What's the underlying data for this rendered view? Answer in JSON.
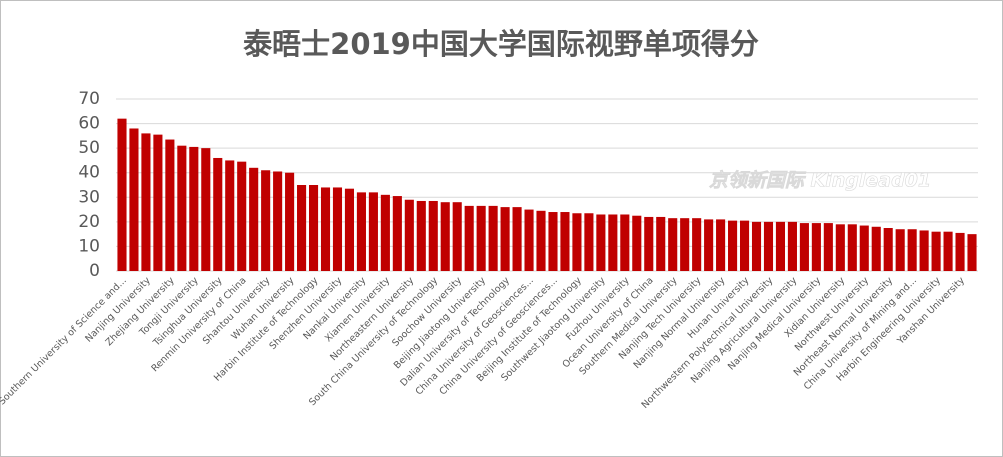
{
  "chart_data": {
    "type": "bar",
    "title": "泰晤士2019中国大学国际视野单项得分",
    "annotation": "京领新国际 Kinglead01",
    "categories": [
      "Southern University of Science and...",
      null,
      "Nanjing University",
      null,
      "Zhejiang University",
      null,
      "Tongji University",
      null,
      "Tsinghua University",
      null,
      "Renmin University of China",
      null,
      "Shantou University",
      null,
      "Wuhan University",
      null,
      "Harbin Institute of Technology",
      null,
      "Shenzhen University",
      null,
      "Nankai University",
      null,
      "Xiamen University",
      null,
      "Northeastern University",
      null,
      "South China University of Technology",
      null,
      "Soochow University",
      null,
      "Beijing Jiaotong University",
      null,
      "Dalian University of Technology",
      null,
      "China University of Geosciences...",
      null,
      "China University of Geosciences...",
      null,
      "Beijing Institute of Technology",
      null,
      "Southwest Jiaotong University",
      null,
      "Fuzhou University",
      null,
      "Ocean University of China",
      null,
      "Southern Medical University",
      null,
      "Nanjing Tech University",
      null,
      "Nanjing Normal University",
      null,
      "Hunan University",
      null,
      "Northwestern Polytechnical University",
      null,
      "Nanjing Agricultural University",
      null,
      "Nanjing Medical University",
      null,
      "Xidian University",
      null,
      "Northwest University",
      null,
      "Northeast Normal University",
      null,
      "China University of Mining and...",
      null,
      "Harbin Engineering University",
      null,
      "Yanshan University",
      null
    ],
    "values": [
      62,
      58,
      56,
      55.5,
      53.5,
      51,
      50.5,
      50,
      46,
      45,
      44.5,
      42,
      41,
      40.5,
      40,
      35,
      35,
      34,
      34,
      33.5,
      32,
      32,
      31,
      30.5,
      29,
      28.5,
      28.5,
      28,
      28,
      26.5,
      26.5,
      26.5,
      26,
      26,
      25,
      24.5,
      24,
      24,
      23.5,
      23.5,
      23,
      23,
      23,
      22.5,
      22,
      22,
      21.5,
      21.5,
      21.5,
      21,
      21,
      20.5,
      20.5,
      20,
      20,
      20,
      20,
      19.5,
      19.5,
      19.5,
      19,
      19,
      18.5,
      18,
      17.5,
      17,
      17,
      16.5,
      16,
      16,
      15.5,
      15
    ],
    "color": "#c00000",
    "ylim": [
      0,
      70
    ],
    "yticks": [
      0,
      10,
      20,
      30,
      40,
      50,
      60,
      70
    ],
    "grid": true
  }
}
